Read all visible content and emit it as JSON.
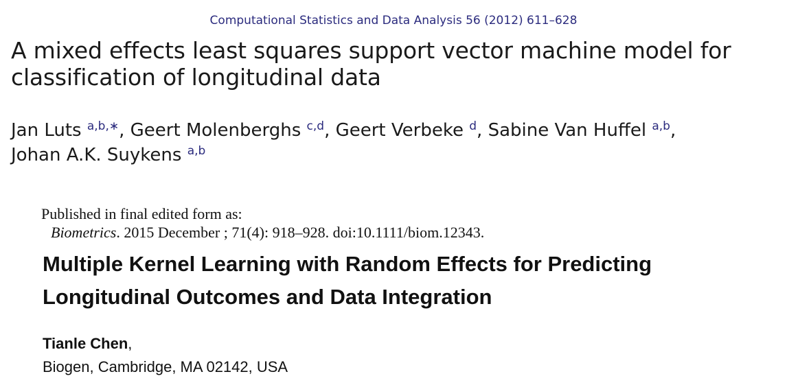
{
  "paper1": {
    "journal_ref": "Computational Statistics and Data Analysis 56 (2012) 611–628",
    "title_line1": "A mixed effects least squares support vector machine model for",
    "title_line2": "classification of longitudinal data",
    "authors": [
      {
        "name": "Jan Luts",
        "sup": "a,b,∗",
        "sep": ", "
      },
      {
        "name": "Geert Molenberghs",
        "sup": "c,d",
        "sep": ", "
      },
      {
        "name": "Geert Verbeke",
        "sup": "d",
        "sep": ", "
      },
      {
        "name": "Sabine Van Huffel",
        "sup": "a,b",
        "sep": ","
      },
      {
        "name": "Johan A.K. Suykens",
        "sup": "a,b",
        "sep": ""
      }
    ]
  },
  "paper2": {
    "published_label": "Published in final edited form as:",
    "journal": "Biometrics",
    "citation_rest": ". 2015 December ; 71(4): 918–928. doi:10.1111/biom.12343.",
    "title_line1": "Multiple Kernel Learning with Random Effects for Predicting",
    "title_line2": "Longitudinal Outcomes and Data Integration",
    "author": "Tianle Chen",
    "author_sep": ",",
    "affiliation": "Biogen, Cambridge, MA 02142, USA"
  },
  "colors": {
    "link_navy": "#2b2b7e",
    "text": "#1a1a1a"
  }
}
